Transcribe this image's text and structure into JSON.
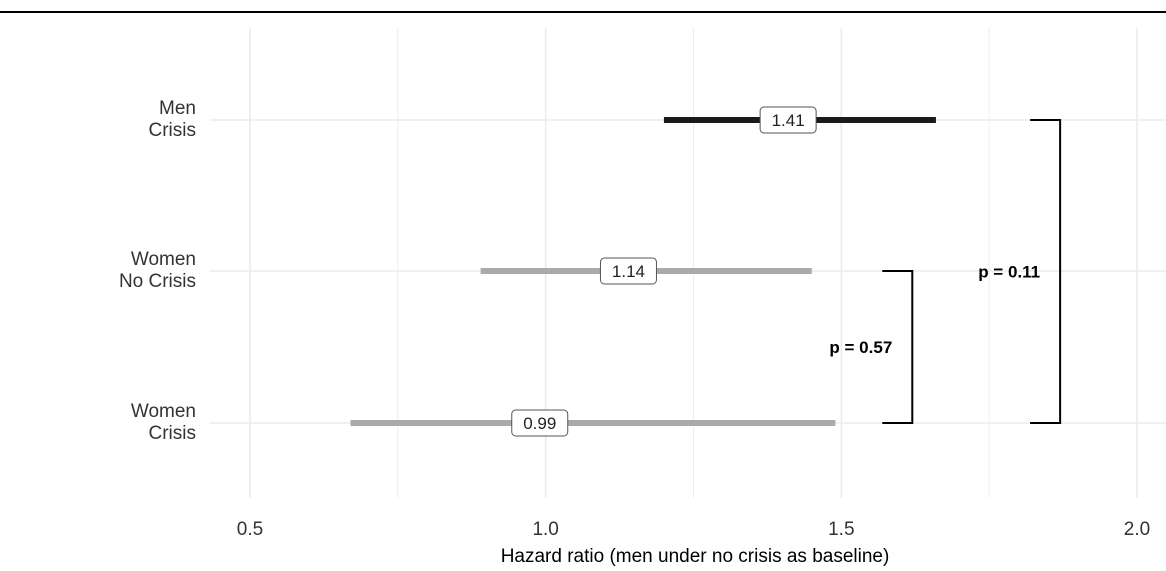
{
  "chart_data": {
    "type": "interval",
    "xlabel": "Hazard ratio (men under no crisis as baseline)",
    "xlim": [
      0.5,
      2.0
    ],
    "x_ticks": [
      "0.5",
      "1.0",
      "1.5",
      "2.0"
    ],
    "grid": true,
    "rows": [
      {
        "label": [
          "Men",
          "Crisis"
        ],
        "estimate": 1.41,
        "estimate_label": "1.41",
        "lower": 1.2,
        "upper": 1.66,
        "color": "#1a1a1a"
      },
      {
        "label": [
          "Women",
          "No Crisis"
        ],
        "estimate": 1.14,
        "estimate_label": "1.14",
        "lower": 0.89,
        "upper": 1.45,
        "color": "#aaaaaa"
      },
      {
        "label": [
          "Women",
          "Crisis"
        ],
        "estimate": 0.99,
        "estimate_label": "0.99",
        "lower": 0.67,
        "upper": 1.49,
        "color": "#aaaaaa"
      }
    ],
    "comparisons": [
      {
        "from_row": 1,
        "to_row": 2,
        "label": "p = 0.57",
        "x": 1.62
      },
      {
        "from_row": 0,
        "to_row": 2,
        "label": "p = 0.11",
        "x": 1.87
      }
    ]
  }
}
